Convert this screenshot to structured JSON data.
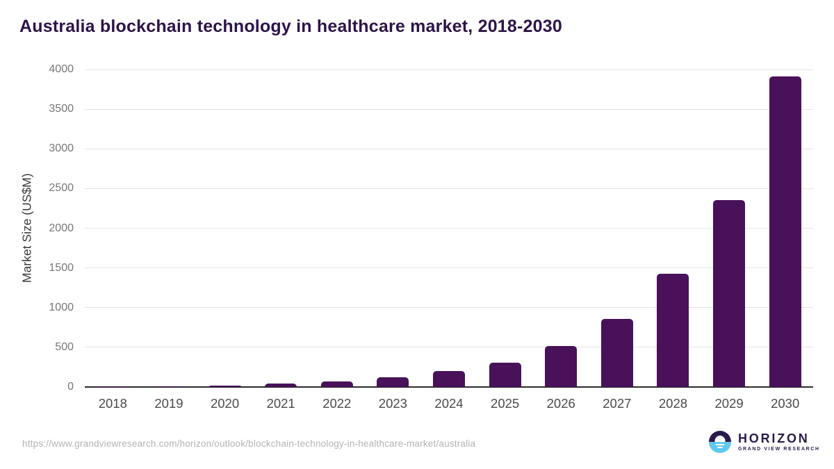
{
  "title": "Australia blockchain technology in healthcare market, 2018-2030",
  "footer": {
    "url": "https://www.grandviewresearch.com/horizon/outlook/blockchain-technology-in-healthcare-market/australia",
    "logo": {
      "name": "HORIZON",
      "subtitle": "GRAND VIEW RESEARCH"
    }
  },
  "colors": {
    "bar": "#481159",
    "title": "#2e1348",
    "grid": "#e4e4e4",
    "axis": "#2b2b2b",
    "tick": "#767676",
    "xlabel": "#4a4a4a",
    "url": "#b3b3b3",
    "logo_dark": "#2a1a4a",
    "logo_blue": "#5fc9f1"
  },
  "chart_data": {
    "type": "bar",
    "title": "Australia blockchain technology in healthcare market, 2018-2030",
    "categories": [
      "2018",
      "2019",
      "2020",
      "2021",
      "2022",
      "2023",
      "2024",
      "2025",
      "2026",
      "2027",
      "2028",
      "2029",
      "2030"
    ],
    "values": [
      4,
      10,
      22,
      40,
      70,
      120,
      200,
      310,
      520,
      860,
      1430,
      2355,
      3910
    ],
    "xlabel": "",
    "ylabel": "Market Size (US$M)",
    "ylim": [
      0,
      4000
    ],
    "yticks": [
      0,
      500,
      1000,
      1500,
      2000,
      2500,
      3000,
      3500,
      4000
    ],
    "grid": true,
    "legend": false,
    "bar_color": "#481159"
  }
}
